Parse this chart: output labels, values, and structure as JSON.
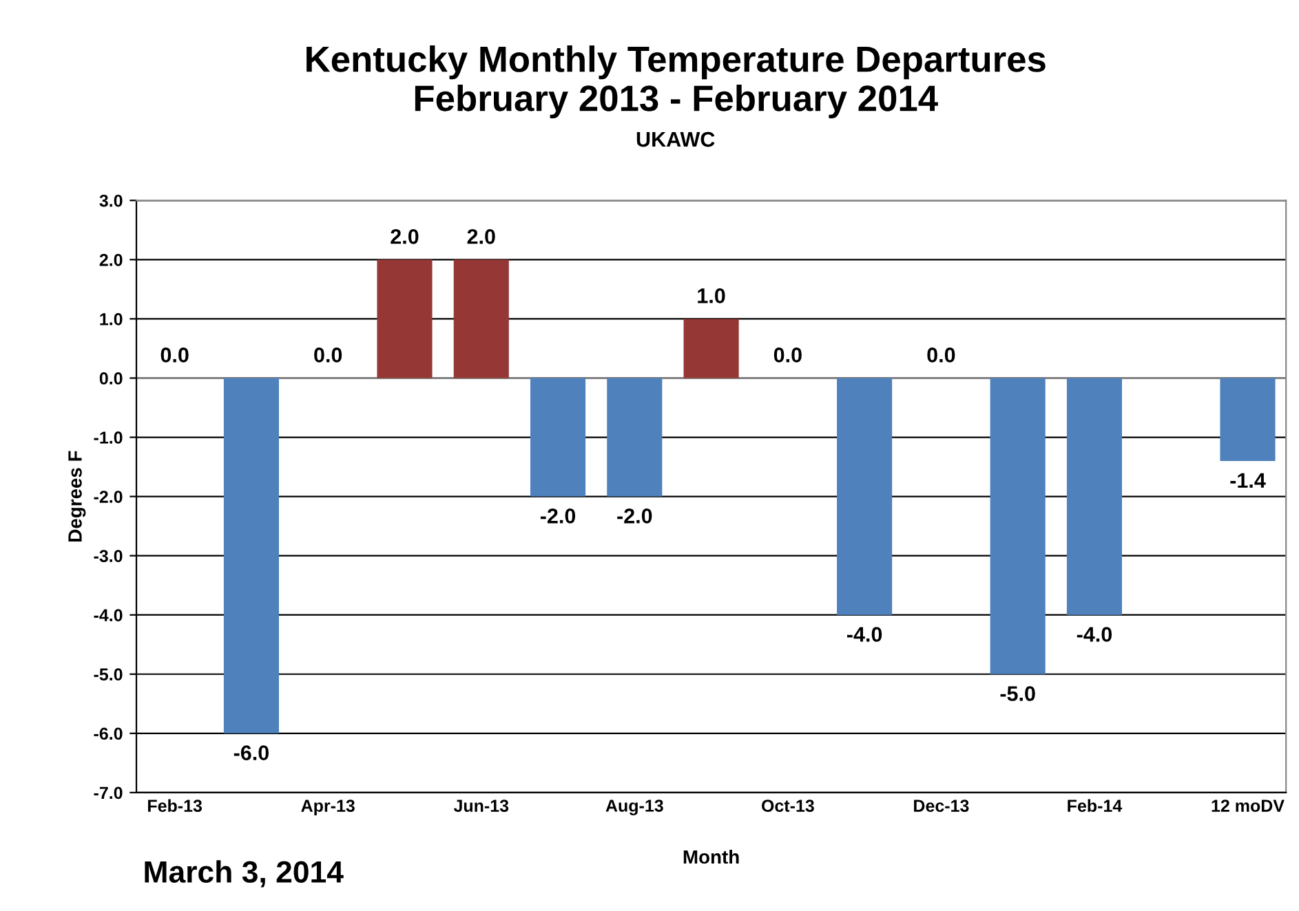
{
  "chart_data": {
    "type": "bar",
    "title": "Kentucky Monthly Temperature Departures\nFebruary 2013 - February 2014",
    "subtitle": "UKAWC",
    "xlabel": "Month",
    "ylabel": "Degrees F",
    "categories": [
      "Feb-13",
      null,
      "Apr-13",
      null,
      "Jun-13",
      null,
      "Aug-13",
      null,
      "Oct-13",
      null,
      "Dec-13",
      null,
      "Feb-14",
      null,
      "12 moDV"
    ],
    "values": [
      0.0,
      -6.0,
      0.0,
      2.0,
      2.0,
      -2.0,
      -2.0,
      1.0,
      0.0,
      -4.0,
      0.0,
      -5.0,
      -4.0,
      null,
      -1.4
    ],
    "colors": [
      "#4f81bd",
      "#4f81bd",
      "#4f81bd",
      "#953735",
      "#953735",
      "#4f81bd",
      "#4f81bd",
      "#953735",
      "#4f81bd",
      "#4f81bd",
      "#4f81bd",
      "#4f81bd",
      "#4f81bd",
      "#4f81bd",
      "#4f81bd"
    ],
    "value_labels": [
      "0.0",
      "-6.0",
      "0.0",
      "2.0",
      "2.0",
      "-2.0",
      "-2.0",
      "1.0",
      "0.0",
      "-4.0",
      "0.0",
      "-5.0",
      "-4.0",
      null,
      "-1.4"
    ],
    "ylim": [
      -7.0,
      3.0
    ],
    "yticks": [
      {
        "value": -7,
        "label": "-7.0"
      },
      {
        "value": -6,
        "label": "-6.0"
      },
      {
        "value": -5,
        "label": "-5.0"
      },
      {
        "value": -4,
        "label": "-4.0"
      },
      {
        "value": -3,
        "label": "-3.0"
      },
      {
        "value": -2,
        "label": "-2.0"
      },
      {
        "value": -1,
        "label": "-1.0"
      },
      {
        "value": 0,
        "label": "0.0"
      },
      {
        "value": 1,
        "label": "1.0"
      },
      {
        "value": 2,
        "label": "2.0"
      },
      {
        "value": 3,
        "label": "3.0"
      }
    ],
    "grid": "y",
    "legend": false,
    "annotations": [
      "March 3, 2014"
    ]
  }
}
